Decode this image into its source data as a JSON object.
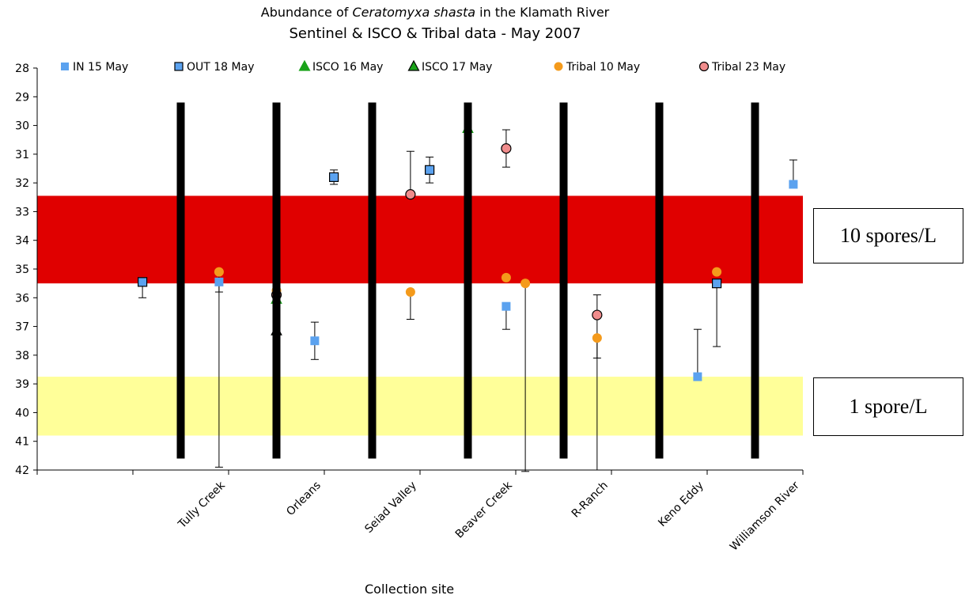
{
  "chart_data": {
    "type": "scatter",
    "title_prefix": "Abundance of ",
    "title_species": "Ceratomyxa shasta",
    "title_suffix": " in the Klamath River",
    "subtitle": "Sentinel & ISCO & Tribal data - May 2007",
    "xlabel": "Collection site",
    "ylabel": "",
    "y_axis_inverted": true,
    "ylim": [
      28,
      42
    ],
    "y_ticks": [
      28,
      29,
      30,
      31,
      32,
      33,
      34,
      35,
      36,
      37,
      38,
      39,
      40,
      41,
      42
    ],
    "x_slots": 8,
    "categories": [
      "Tully Creek",
      "Orleans",
      "Seiad Valley",
      "Beaver Creek",
      "R-Ranch",
      "Keno Eddy",
      "Williamson River"
    ],
    "category_slot_index": [
      2,
      3,
      4,
      5,
      6,
      7,
      8
    ],
    "series": [
      {
        "name": "IN 15 May",
        "marker": "square",
        "color": "#5BA2EF",
        "border": "none",
        "points": [
          {
            "x": 1.9,
            "y": 35.45,
            "err_up": 0,
            "err_down": 0.35
          },
          {
            "x": 2.9,
            "y": 37.5,
            "err_up": 0.65,
            "err_down": 0.65
          },
          {
            "x": 4.9,
            "y": 36.3,
            "err_up": 0,
            "err_down": 0.8
          },
          {
            "x": 6.9,
            "y": 38.75,
            "err_up": 1.65,
            "err_down": 0
          },
          {
            "x": 7.9,
            "y": 32.05,
            "err_up": 0.85,
            "err_down": 0
          }
        ]
      },
      {
        "name": "OUT 18 May",
        "marker": "square",
        "color": "#5BA2EF",
        "border": "#000000",
        "points": [
          {
            "x": 1.1,
            "y": 35.45,
            "err_up": 0,
            "err_down": 0.55
          },
          {
            "x": 3.1,
            "y": 31.8,
            "err_up": 0.25,
            "err_down": 0.25
          },
          {
            "x": 4.1,
            "y": 31.55,
            "err_up": 0.45,
            "err_down": 0.45
          },
          {
            "x": 7.1,
            "y": 35.5,
            "err_up": 0,
            "err_down": 2.2
          }
        ]
      },
      {
        "name": "ISCO 16 May",
        "marker": "triangle",
        "color": "#1AA31A",
        "border": "#1AA31A",
        "points": [
          {
            "x": 2.5,
            "y": 36.05,
            "err_up": 0,
            "err_down": 0
          },
          {
            "x": 4.5,
            "y": 30.1,
            "err_up": 0,
            "err_down": 0
          }
        ]
      },
      {
        "name": "ISCO 17 May",
        "marker": "triangle",
        "color": "#1AA31A",
        "border": "#000000",
        "points": [
          {
            "x": 2.5,
            "y": 37.15,
            "err_up": 0,
            "err_down": 1.6
          }
        ]
      },
      {
        "name": "Tribal 10 May",
        "marker": "circle",
        "color": "#F49A1B",
        "border": "none",
        "points": [
          {
            "x": 1.9,
            "y": 35.1,
            "err_up": 0,
            "err_down": 6.8
          },
          {
            "x": 2.5,
            "y": 35.75,
            "err_up": 0,
            "err_down": 0
          },
          {
            "x": 3.9,
            "y": 35.8,
            "err_up": 0,
            "err_down": 0.95
          },
          {
            "x": 4.9,
            "y": 35.3,
            "err_up": 0,
            "err_down": 0
          },
          {
            "x": 5.1,
            "y": 35.5,
            "err_up": 0,
            "err_down": 6.6
          },
          {
            "x": 5.85,
            "y": 37.4,
            "err_up": 0,
            "err_down": 4.6
          },
          {
            "x": 7.1,
            "y": 35.1,
            "err_up": 0,
            "err_down": 0
          }
        ]
      },
      {
        "name": "Tribal 23 May",
        "marker": "circle",
        "color": "#F08C8C",
        "border": "#000000",
        "points": [
          {
            "x": 2.5,
            "y": 35.9,
            "err_up": 0,
            "err_down": 0
          },
          {
            "x": 3.9,
            "y": 32.4,
            "err_up": 1.5,
            "err_down": 0
          },
          {
            "x": 4.9,
            "y": 30.8,
            "err_up": 0.65,
            "err_down": 0.65
          },
          {
            "x": 5.85,
            "y": 36.6,
            "err_up": 0.7,
            "err_down": 1.5
          }
        ]
      }
    ],
    "bands": [
      {
        "label": "10 spores/L",
        "y_from": 32.45,
        "y_to": 35.5,
        "color": "#E00000"
      },
      {
        "label": "1 spore/L",
        "y_from": 38.75,
        "y_to": 40.8,
        "color": "#FFFF99"
      }
    ],
    "dividers": {
      "x": [
        1.5,
        2.5,
        3.5,
        4.5,
        5.5,
        6.5,
        7.5
      ],
      "y_from": 29.2,
      "y_to": 41.6,
      "color": "#000000"
    },
    "legend_position": "top"
  }
}
